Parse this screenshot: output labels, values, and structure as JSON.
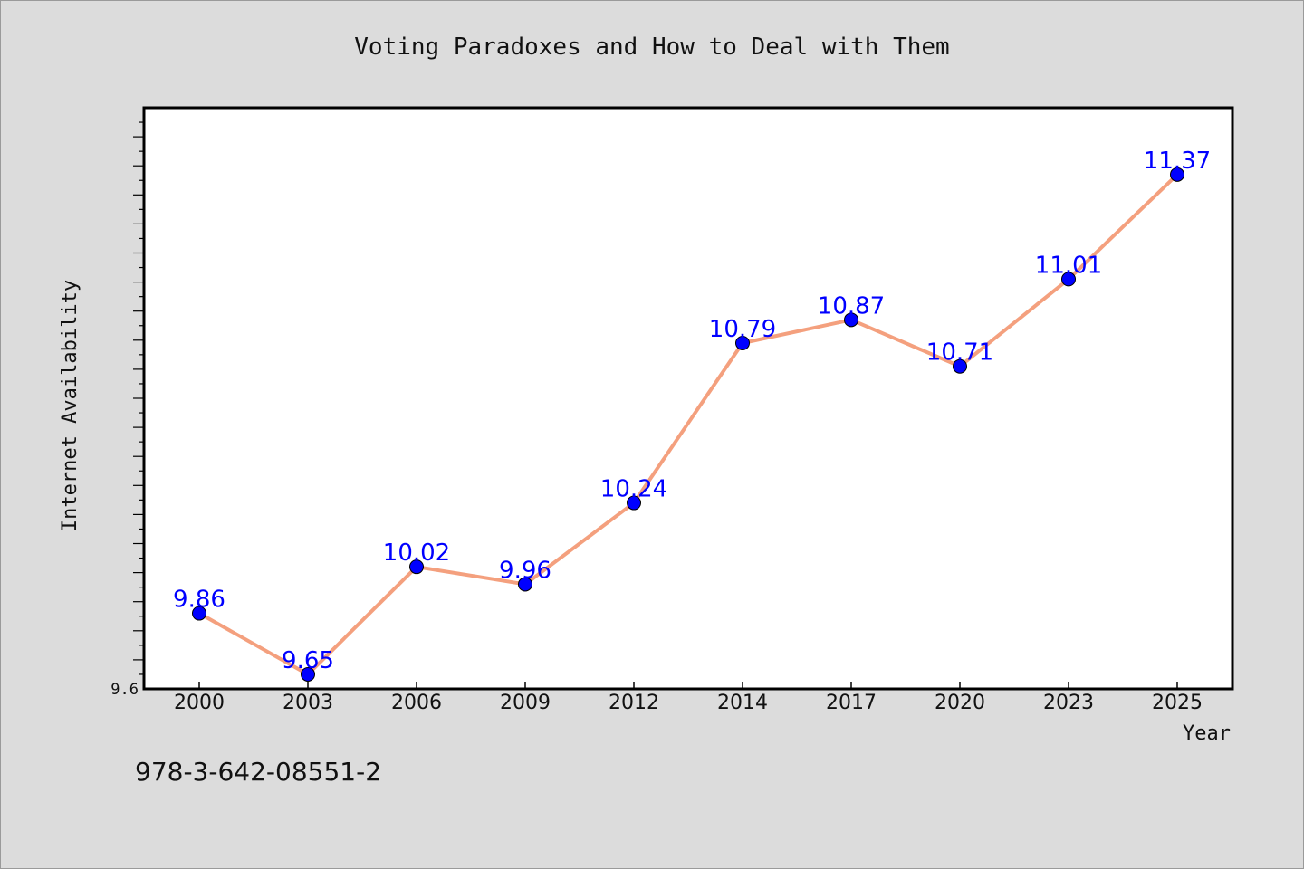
{
  "chart_data": {
    "type": "line",
    "title": "Voting Paradoxes and How to Deal with Them",
    "xlabel": "Year",
    "ylabel": "Internet Availability",
    "categories": [
      "2000",
      "2003",
      "2006",
      "2009",
      "2012",
      "2014",
      "2017",
      "2020",
      "2023",
      "2025"
    ],
    "series": [
      {
        "values": [
          9.86,
          9.65,
          10.02,
          9.96,
          10.24,
          10.79,
          10.87,
          10.71,
          11.01,
          11.37
        ],
        "data_labels": [
          "9.86",
          "9.65",
          "10.02",
          "9.96",
          "10.24",
          "10.79",
          "10.87",
          "10.71",
          "11.01",
          "11.37"
        ]
      }
    ],
    "ylim": [
      9.6,
      11.6
    ],
    "yticks_labeled": [
      {
        "value": 9.6,
        "label": "9.6"
      }
    ],
    "grid": false,
    "legend": "none",
    "colors": {
      "line": "#f4a07e",
      "marker": "#0000ff",
      "data_label": "#0000ff",
      "background": "#dcdcdc",
      "plot_background": "#ffffff"
    }
  },
  "footnote": "978-3-642-08551-2"
}
